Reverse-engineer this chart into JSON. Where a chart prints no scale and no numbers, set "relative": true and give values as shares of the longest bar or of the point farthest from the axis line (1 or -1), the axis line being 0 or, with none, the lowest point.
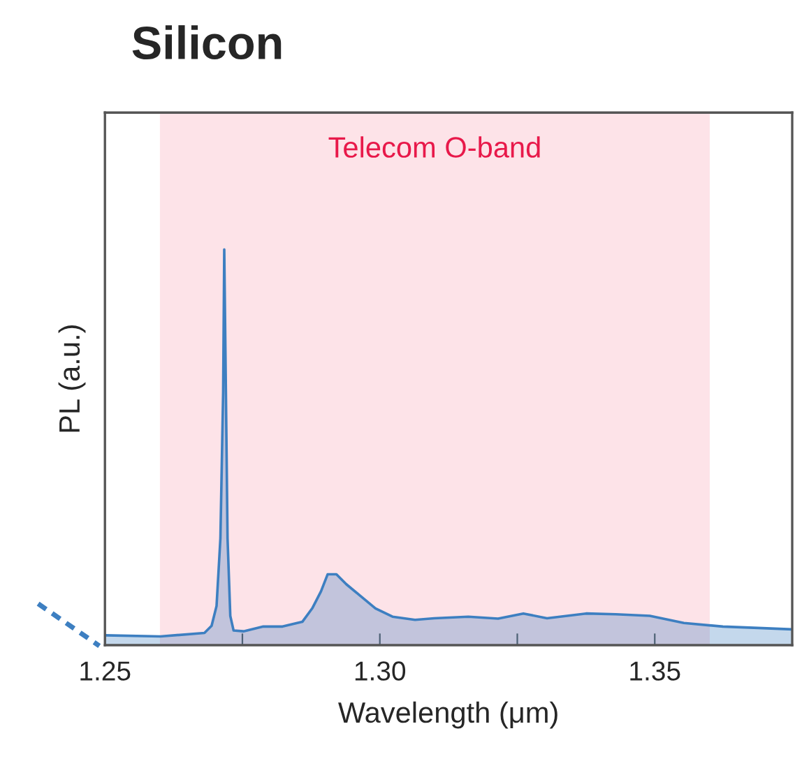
{
  "chart_data": {
    "type": "area",
    "title": "Silicon",
    "xlabel": "Wavelength (μm)",
    "ylabel": "PL (a.u.)",
    "relative": true,
    "x": [
      1.25,
      1.2601,
      1.2681,
      1.2694,
      1.2703,
      1.271,
      1.2715,
      1.2717,
      1.272,
      1.2723,
      1.2728,
      1.2734,
      1.2752,
      1.2788,
      1.2823,
      1.2859,
      1.2877,
      1.2893,
      1.2905,
      1.2921,
      1.2939,
      1.2966,
      1.2992,
      1.3023,
      1.3064,
      1.3099,
      1.3161,
      1.3215,
      1.3261,
      1.3304,
      1.3375,
      1.3429,
      1.3491,
      1.3553,
      1.3624,
      1.3696,
      1.375
    ],
    "series": [
      {
        "color": "#3d7fc1",
        "values": [
          0.025,
          0.022,
          0.031,
          0.049,
          0.099,
          0.27,
          0.64,
          1.0,
          0.64,
          0.27,
          0.074,
          0.037,
          0.035,
          0.047,
          0.047,
          0.059,
          0.093,
          0.136,
          0.179,
          0.179,
          0.154,
          0.123,
          0.093,
          0.072,
          0.064,
          0.068,
          0.072,
          0.067,
          0.08,
          0.068,
          0.08,
          0.078,
          0.074,
          0.056,
          0.047,
          0.043,
          0.04
        ]
      }
    ],
    "xlim": [
      1.25,
      1.375
    ],
    "xticks": [
      1.25,
      {
        "value": 1.275,
        "label": null
      },
      {
        "value": 1.3,
        "label": "1.30"
      },
      {
        "value": 1.325,
        "label": null
      },
      1.35
    ],
    "bands": [
      {
        "axis": "x",
        "from": 1.26,
        "to": 1.36,
        "label": "Telecom O-band",
        "color": "#fde3e8"
      }
    ],
    "tick_labels": "x",
    "grid": false,
    "legend": false
  }
}
